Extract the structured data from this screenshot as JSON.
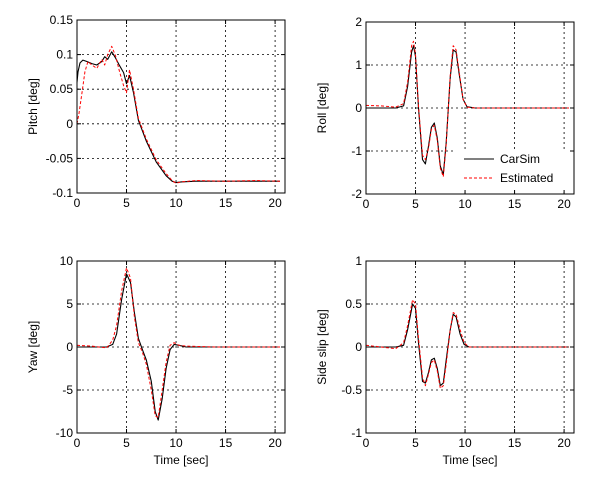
{
  "legend": {
    "entries": [
      {
        "name": "CarSim",
        "color": "#000000",
        "dash": false
      },
      {
        "name": "Estimated",
        "color": "#ff0000",
        "dash": true
      }
    ]
  },
  "chart_data": [
    {
      "type": "line",
      "xlabel": "",
      "ylabel": "Pitch [deg]",
      "xlim": [
        0,
        21
      ],
      "ylim": [
        -0.1,
        0.15
      ],
      "xticks": [
        0,
        5,
        10,
        15,
        20
      ],
      "xtick_labels": [
        "0",
        "5",
        "10",
        "15",
        "20"
      ],
      "yticks": [
        -0.1,
        -0.05,
        0,
        0.05,
        0.1,
        0.15
      ],
      "ytick_labels": [
        "-0.1",
        "-0.05",
        "0",
        "0.05",
        "0.1",
        "0.15"
      ],
      "grid": true,
      "legend": "none",
      "series": [
        {
          "name": "CarSim",
          "color": "#000000",
          "dash": false,
          "x": [
            0,
            0.1,
            0.3,
            0.6,
            1.0,
            1.5,
            2.0,
            2.5,
            2.8,
            3.1,
            3.5,
            3.9,
            4.3,
            4.7,
            5.0,
            5.3,
            5.7,
            6.2,
            7.0,
            8.0,
            9.0,
            9.6,
            10.0,
            10.5,
            12,
            15,
            18,
            20.5
          ],
          "y": [
            0.06,
            0.075,
            0.088,
            0.092,
            0.09,
            0.087,
            0.085,
            0.09,
            0.097,
            0.093,
            0.104,
            0.095,
            0.084,
            0.074,
            0.058,
            0.07,
            0.045,
            0.005,
            -0.025,
            -0.055,
            -0.075,
            -0.083,
            -0.085,
            -0.084,
            -0.083,
            -0.083,
            -0.083,
            -0.083
          ]
        },
        {
          "name": "Estimated",
          "color": "#ff0000",
          "dash": true,
          "x": [
            0,
            0.2,
            0.5,
            0.8,
            1.1,
            1.5,
            2.0,
            2.5,
            2.8,
            3.1,
            3.5,
            3.9,
            4.3,
            4.7,
            5.0,
            5.3,
            5.7,
            6.2,
            7.0,
            8.0,
            9.0,
            9.6,
            10.0,
            10.5,
            12,
            15,
            18,
            20.5
          ],
          "y": [
            0.0,
            0.015,
            0.045,
            0.075,
            0.09,
            0.085,
            0.08,
            0.093,
            0.085,
            0.1,
            0.112,
            0.098,
            0.075,
            0.055,
            0.045,
            0.078,
            0.05,
            0.008,
            -0.022,
            -0.052,
            -0.072,
            -0.082,
            -0.086,
            -0.084,
            -0.082,
            -0.083,
            -0.082,
            -0.083
          ]
        }
      ]
    },
    {
      "type": "line",
      "xlabel": "",
      "ylabel": "Roll [deg]",
      "xlim": [
        0,
        21
      ],
      "ylim": [
        -2,
        2
      ],
      "xticks": [
        0,
        5,
        10,
        15,
        20
      ],
      "xtick_labels": [
        "0",
        "5",
        "10",
        "15",
        "20"
      ],
      "yticks": [
        -2,
        -1,
        0,
        1,
        2
      ],
      "ytick_labels": [
        "-2",
        "-1",
        "0",
        "1",
        "2"
      ],
      "grid": true,
      "legend": "bottom-right",
      "series": [
        {
          "name": "CarSim",
          "color": "#000000",
          "dash": false,
          "x": [
            0,
            3.0,
            3.8,
            4.2,
            4.6,
            4.8,
            5.0,
            5.3,
            5.7,
            6.0,
            6.3,
            6.6,
            6.9,
            7.2,
            7.5,
            7.8,
            8.1,
            8.5,
            8.8,
            9.1,
            9.4,
            9.8,
            10.2,
            11,
            14,
            17,
            20.5
          ],
          "y": [
            0,
            0,
            0.05,
            0.5,
            1.3,
            1.45,
            1.2,
            0.0,
            -1.2,
            -1.3,
            -0.9,
            -0.45,
            -0.35,
            -0.7,
            -1.35,
            -1.55,
            -0.8,
            0.7,
            1.35,
            1.3,
            0.8,
            0.2,
            0.03,
            0,
            0,
            0,
            0
          ]
        },
        {
          "name": "Estimated",
          "color": "#ff0000",
          "dash": true,
          "x": [
            0,
            1.5,
            3.0,
            3.8,
            4.2,
            4.6,
            4.8,
            5.0,
            5.3,
            5.7,
            6.0,
            6.3,
            6.6,
            6.9,
            7.2,
            7.5,
            7.8,
            8.1,
            8.5,
            8.8,
            9.1,
            9.4,
            9.8,
            10.2,
            11,
            14,
            17,
            20.5
          ],
          "y": [
            0.06,
            0.05,
            0.02,
            0.1,
            0.6,
            1.45,
            1.55,
            1.25,
            0.05,
            -1.1,
            -1.2,
            -0.95,
            -0.5,
            -0.4,
            -0.75,
            -1.4,
            -1.6,
            -0.85,
            0.75,
            1.45,
            1.35,
            0.85,
            0.2,
            0.02,
            0.0,
            0.0,
            0.0,
            0.0
          ]
        }
      ]
    },
    {
      "type": "line",
      "xlabel": "Time [sec]",
      "ylabel": "Yaw [deg]",
      "xlim": [
        0,
        21
      ],
      "ylim": [
        -10,
        10
      ],
      "xticks": [
        0,
        5,
        10,
        15,
        20
      ],
      "xtick_labels": [
        "0",
        "5",
        "10",
        "15",
        "20"
      ],
      "yticks": [
        -10,
        -5,
        0,
        5,
        10
      ],
      "ytick_labels": [
        "-10",
        "-5",
        "0",
        "5",
        "10"
      ],
      "grid": true,
      "legend": "none",
      "series": [
        {
          "name": "CarSim",
          "color": "#000000",
          "dash": false,
          "x": [
            0,
            3.0,
            3.6,
            4.0,
            4.5,
            5.0,
            5.4,
            5.8,
            6.2,
            6.6,
            7.0,
            7.5,
            7.9,
            8.2,
            8.6,
            9.0,
            9.4,
            9.8,
            10.3,
            11,
            14,
            17,
            20.5
          ],
          "y": [
            0,
            0,
            0.3,
            1.5,
            5.5,
            8.5,
            7.5,
            4.0,
            1.0,
            -0.3,
            -1.5,
            -4.0,
            -7.5,
            -8.5,
            -6.0,
            -2.5,
            -0.3,
            0.3,
            0.2,
            0,
            0,
            0,
            0
          ]
        },
        {
          "name": "Estimated",
          "color": "#ff0000",
          "dash": true,
          "x": [
            0,
            1.5,
            3.0,
            3.6,
            4.0,
            4.5,
            5.0,
            5.4,
            5.8,
            6.2,
            6.6,
            7.0,
            7.5,
            7.9,
            8.2,
            8.6,
            9.0,
            9.4,
            9.8,
            10.3,
            11,
            14,
            17,
            20.5
          ],
          "y": [
            0.2,
            0.1,
            -0.1,
            0.8,
            2.5,
            6.5,
            9.2,
            8.0,
            3.5,
            0.5,
            -0.6,
            -2.0,
            -5.0,
            -8.0,
            -8.2,
            -5.0,
            -1.8,
            0.2,
            0.5,
            0.2,
            0.1,
            0.0,
            0.0,
            0.0
          ]
        }
      ]
    },
    {
      "type": "line",
      "xlabel": "Time [sec]",
      "ylabel": "Side slip [deg]",
      "xlim": [
        0,
        21
      ],
      "ylim": [
        -1,
        1
      ],
      "xticks": [
        0,
        5,
        10,
        15,
        20
      ],
      "xtick_labels": [
        "0",
        "5",
        "10",
        "15",
        "20"
      ],
      "yticks": [
        -1,
        -0.5,
        0,
        0.5,
        1
      ],
      "ytick_labels": [
        "-1",
        "-0.5",
        "0",
        "0.5",
        "1"
      ],
      "grid": true,
      "legend": "none",
      "series": [
        {
          "name": "CarSim",
          "color": "#000000",
          "dash": false,
          "x": [
            0,
            3.0,
            3.8,
            4.2,
            4.7,
            5.0,
            5.3,
            5.7,
            6.0,
            6.3,
            6.6,
            6.9,
            7.2,
            7.5,
            7.8,
            8.1,
            8.5,
            8.8,
            9.1,
            9.5,
            9.9,
            10.4,
            11,
            14,
            17,
            20.5
          ],
          "y": [
            0,
            0,
            0.02,
            0.2,
            0.5,
            0.45,
            0.05,
            -0.4,
            -0.42,
            -0.3,
            -0.15,
            -0.13,
            -0.25,
            -0.45,
            -0.42,
            -0.15,
            0.2,
            0.38,
            0.35,
            0.15,
            0.03,
            0,
            0,
            0,
            0,
            0
          ]
        },
        {
          "name": "Estimated",
          "color": "#ff0000",
          "dash": true,
          "x": [
            0,
            1.5,
            3.0,
            3.8,
            4.2,
            4.7,
            5.0,
            5.3,
            5.7,
            6.0,
            6.3,
            6.6,
            6.9,
            7.2,
            7.5,
            7.8,
            8.1,
            8.5,
            8.8,
            9.1,
            9.5,
            9.9,
            10.4,
            11,
            14,
            17,
            20.5
          ],
          "y": [
            0.02,
            0.0,
            -0.02,
            0.05,
            0.25,
            0.55,
            0.5,
            0.1,
            -0.35,
            -0.45,
            -0.32,
            -0.18,
            -0.15,
            -0.28,
            -0.48,
            -0.45,
            -0.2,
            0.2,
            0.4,
            0.38,
            0.2,
            0.05,
            0.0,
            0.0,
            0.0,
            0.0,
            0.0
          ]
        }
      ]
    }
  ]
}
